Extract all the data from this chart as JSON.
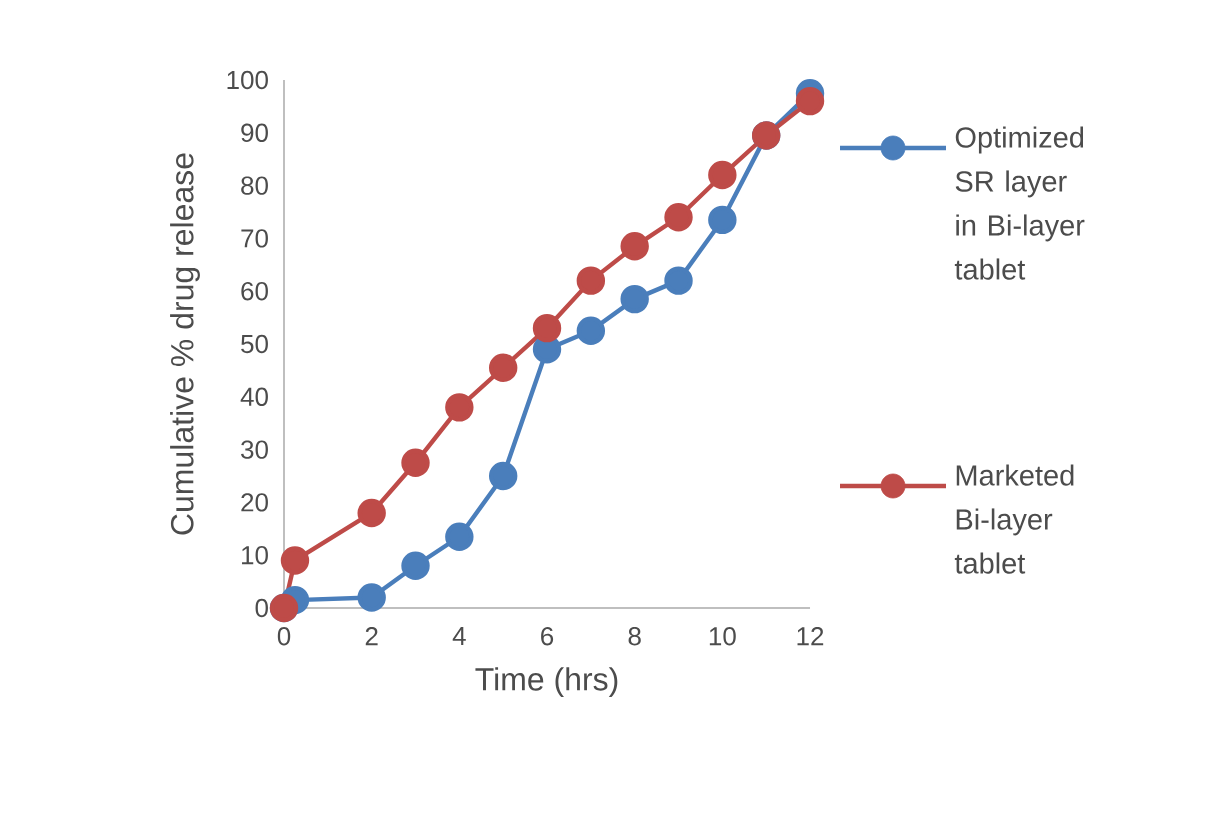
{
  "chart_data": {
    "type": "line",
    "xlabel": "Time (hrs)",
    "ylabel": "Cumulative % drug release",
    "x": [
      0,
      0.25,
      2,
      3,
      4,
      5,
      6,
      7,
      8,
      9,
      10,
      11,
      12
    ],
    "series": [
      {
        "name": "Optimized SR layer in Bi-layer tablet",
        "color": "#4a7ebb",
        "values": [
          0,
          1.5,
          2,
          8,
          13.5,
          25,
          49,
          52.5,
          58.5,
          62,
          73.5,
          89.5,
          97.5
        ]
      },
      {
        "name": "Marketed Bi-layer tablet",
        "color": "#be4b48",
        "values": [
          0,
          9,
          18,
          27.5,
          38,
          45.5,
          53,
          62,
          68.5,
          74,
          82,
          89.5,
          96
        ]
      }
    ],
    "xlim": [
      0,
      12
    ],
    "ylim": [
      0,
      100
    ],
    "xticks": [
      0,
      2,
      4,
      6,
      8,
      10,
      12
    ],
    "yticks": [
      0,
      10,
      20,
      30,
      40,
      50,
      60,
      70,
      80,
      90,
      100
    ],
    "legend": "right",
    "marker": "circle",
    "line_style": "solid",
    "grid": false
  }
}
